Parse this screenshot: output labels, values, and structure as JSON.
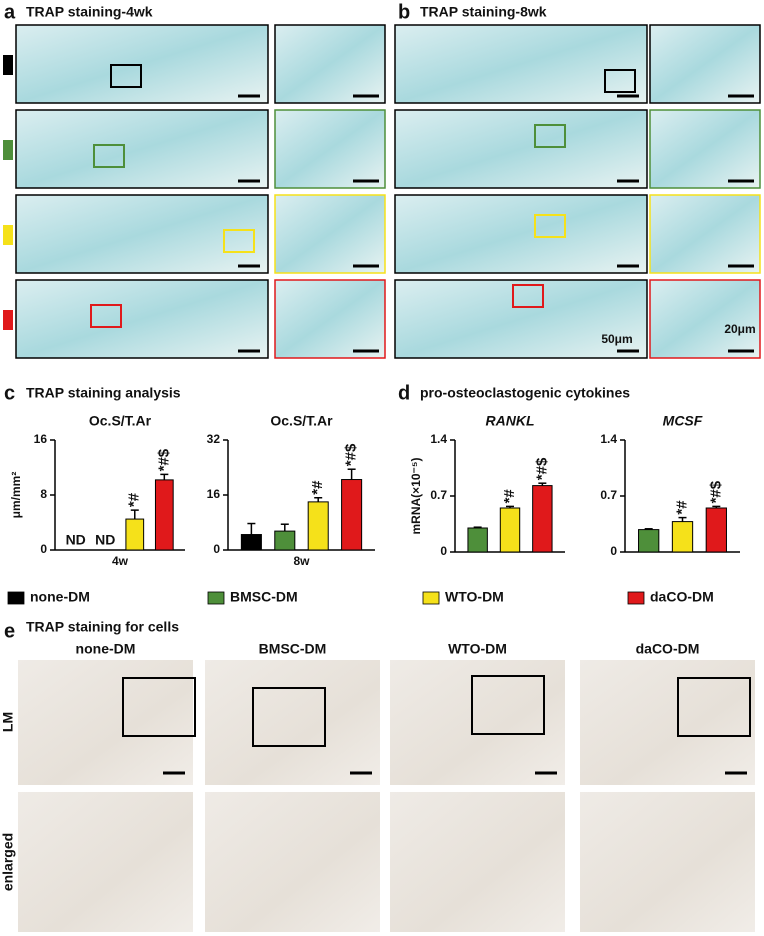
{
  "panels": {
    "a": {
      "label": "a",
      "title": "TRAP staining-4wk"
    },
    "b": {
      "label": "b",
      "title": "TRAP staining-8wk",
      "scale_bars": [
        "50μm",
        "20μm"
      ]
    },
    "c": {
      "label": "c",
      "title": "TRAP staining analysis"
    },
    "d": {
      "label": "d",
      "title": "pro-osteoclastogenic cytokines"
    },
    "e": {
      "label": "e",
      "title": "TRAP staining for cells",
      "columns": [
        "none-DM",
        "BMSC-DM",
        "WTO-DM",
        "daCO-DM"
      ],
      "rows": [
        "LM",
        "enlarged"
      ]
    }
  },
  "legend": [
    {
      "name": "none-DM",
      "color": "#000000"
    },
    {
      "name": "BMSC-DM",
      "color": "#4e8f3a"
    },
    {
      "name": "WTO-DM",
      "color": "#f5e11a"
    },
    {
      "name": "daCO-DM",
      "color": "#e0191b"
    }
  ],
  "chart_data": [
    {
      "type": "bar",
      "title": "Oc.S/T.Ar",
      "ylabel": "μm/mm²",
      "categories": [
        "4w"
      ],
      "ylim": [
        0,
        16
      ],
      "yticks": [
        0,
        8,
        16
      ],
      "series": [
        {
          "name": "none-DM",
          "color": "#000000",
          "values": [
            null
          ],
          "value_labels": [
            "ND"
          ]
        },
        {
          "name": "BMSC-DM",
          "color": "#4e8f3a",
          "values": [
            null
          ],
          "value_labels": [
            "ND"
          ]
        },
        {
          "name": "WTO-DM",
          "color": "#f5e11a",
          "values": [
            4.5
          ],
          "errors": [
            1.3
          ],
          "sig": [
            "*#"
          ]
        },
        {
          "name": "daCO-DM",
          "color": "#e0191b",
          "values": [
            10.2
          ],
          "errors": [
            0.8
          ],
          "sig": [
            "*#$"
          ]
        }
      ]
    },
    {
      "type": "bar",
      "title": "Oc.S/T.Ar",
      "categories": [
        "8w"
      ],
      "ylim": [
        0,
        32
      ],
      "yticks": [
        0,
        16,
        32
      ],
      "series": [
        {
          "name": "none-DM",
          "color": "#000000",
          "values": [
            4.5
          ],
          "errors": [
            3.2
          ]
        },
        {
          "name": "BMSC-DM",
          "color": "#4e8f3a",
          "values": [
            5.5
          ],
          "errors": [
            2.0
          ]
        },
        {
          "name": "WTO-DM",
          "color": "#f5e11a",
          "values": [
            14
          ],
          "errors": [
            1.2
          ],
          "sig": [
            "*#"
          ]
        },
        {
          "name": "daCO-DM",
          "color": "#e0191b",
          "values": [
            20.5
          ],
          "errors": [
            3.0
          ],
          "sig": [
            "*#$"
          ]
        }
      ]
    },
    {
      "type": "bar",
      "title": "RANKL",
      "ylabel": "mRNA(×10⁻⁵)",
      "categories": [
        null
      ],
      "ylim": [
        0,
        1.4
      ],
      "yticks": [
        0,
        0.7,
        1.4
      ],
      "series": [
        {
          "name": "BMSC-DM",
          "color": "#4e8f3a",
          "values": [
            0.3
          ],
          "errors": [
            0.01
          ]
        },
        {
          "name": "WTO-DM",
          "color": "#f5e11a",
          "values": [
            0.55
          ],
          "errors": [
            0.02
          ],
          "sig": [
            "*#"
          ]
        },
        {
          "name": "daCO-DM",
          "color": "#e0191b",
          "values": [
            0.83
          ],
          "errors": [
            0.03
          ],
          "sig": [
            "*#$"
          ]
        }
      ]
    },
    {
      "type": "bar",
      "title": "MCSF",
      "categories": [
        null
      ],
      "ylim": [
        0,
        1.4
      ],
      "yticks": [
        0,
        0.7,
        1.4
      ],
      "series": [
        {
          "name": "BMSC-DM",
          "color": "#4e8f3a",
          "values": [
            0.28
          ],
          "errors": [
            0.01
          ]
        },
        {
          "name": "WTO-DM",
          "color": "#f5e11a",
          "values": [
            0.38
          ],
          "errors": [
            0.05
          ],
          "sig": [
            "*#"
          ]
        },
        {
          "name": "daCO-DM",
          "color": "#e0191b",
          "values": [
            0.55
          ],
          "errors": [
            0.02
          ],
          "sig": [
            "*#$"
          ]
        }
      ]
    }
  ]
}
